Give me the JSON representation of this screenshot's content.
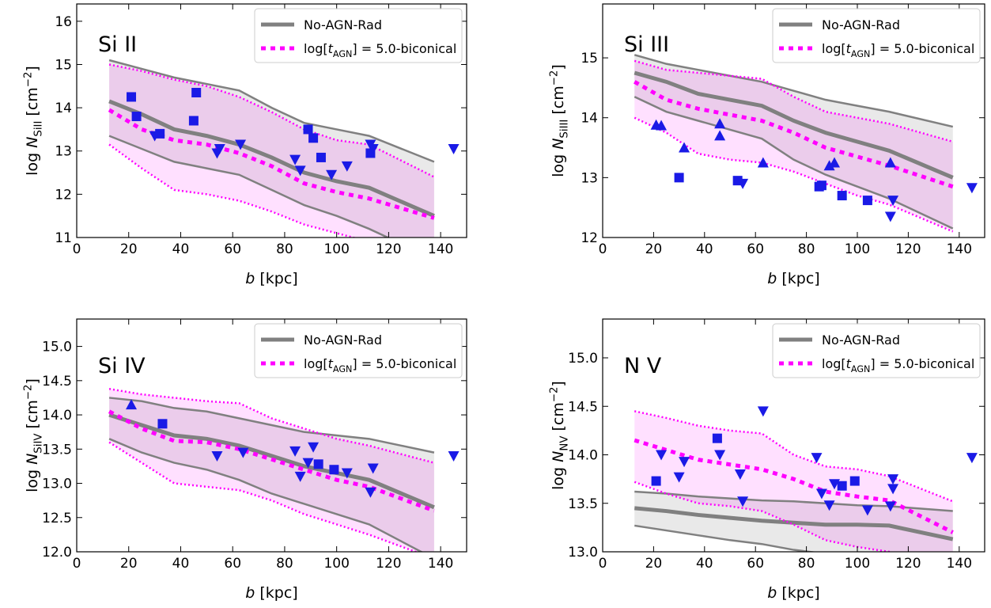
{
  "chart_data": [
    {
      "type": "line",
      "label": "Si II",
      "xlabel": [
        {
          "text": "b",
          "style": "italic"
        },
        {
          "text": " [kpc]"
        }
      ],
      "ylabel": [
        {
          "text": "log "
        },
        {
          "text": "N",
          "style": "italic"
        },
        {
          "text": "SiII",
          "style": "sub"
        },
        {
          "text": " [cm"
        },
        {
          "text": "−2",
          "style": "sup"
        },
        {
          "text": "]"
        }
      ],
      "xlim": [
        0,
        150
      ],
      "xticks": [
        0,
        20,
        40,
        60,
        80,
        100,
        120,
        140
      ],
      "ylim": [
        11,
        16.4
      ],
      "yticks": [
        11,
        12,
        13,
        14,
        15,
        16
      ],
      "legend": "upper right",
      "model_x": [
        12.5,
        25,
        37.5,
        50,
        62.5,
        75,
        87.5,
        100,
        112.5,
        137.5
      ],
      "series": [
        {
          "name": [
            {
              "text": "No-AGN-Rad"
            }
          ],
          "color": "#808080",
          "style": "solid",
          "fill": "#e9e9e9",
          "values": [
            14.15,
            13.85,
            13.5,
            13.35,
            13.15,
            12.85,
            12.5,
            12.3,
            12.15,
            11.5
          ],
          "upper": [
            15.1,
            14.9,
            14.7,
            14.55,
            14.4,
            14.0,
            13.65,
            13.5,
            13.35,
            12.75
          ],
          "lower": [
            13.35,
            13.05,
            12.75,
            12.6,
            12.45,
            12.1,
            11.75,
            11.5,
            11.2,
            10.5
          ]
        },
        {
          "name": [
            {
              "text": "log["
            },
            {
              "text": "t",
              "style": "italic"
            },
            {
              "text": "AGN",
              "style": "sub"
            },
            {
              "text": "] = 5.0-biconical"
            }
          ],
          "color": "#ff00ff",
          "style": "dotted",
          "fill": "rgba(255,0,255,0.12)",
          "values": [
            13.95,
            13.5,
            13.25,
            13.15,
            12.95,
            12.65,
            12.25,
            12.05,
            11.9,
            11.45
          ],
          "upper": [
            15.0,
            14.85,
            14.65,
            14.5,
            14.25,
            13.9,
            13.5,
            13.25,
            13.15,
            12.4
          ],
          "lower": [
            13.15,
            12.6,
            12.1,
            12.0,
            11.85,
            11.6,
            11.3,
            11.1,
            10.9,
            10.3
          ]
        }
      ],
      "observations": [
        {
          "marker": "square",
          "color": "#1a1ae6",
          "x": [
            21,
            23,
            32,
            45,
            46,
            89,
            91,
            94,
            113
          ],
          "y": [
            14.25,
            13.8,
            13.4,
            13.7,
            14.35,
            13.5,
            13.3,
            12.85,
            12.95
          ]
        },
        {
          "marker": "triangle-down",
          "color": "#1a1ae6",
          "x": [
            30,
            54,
            55,
            63,
            84,
            86,
            98,
            104,
            113,
            114,
            145
          ],
          "y": [
            13.35,
            12.95,
            13.05,
            13.15,
            12.8,
            12.55,
            12.45,
            12.65,
            13.15,
            13.05,
            13.05
          ]
        }
      ]
    },
    {
      "type": "line",
      "label": "Si III",
      "xlabel": [
        {
          "text": "b",
          "style": "italic"
        },
        {
          "text": " [kpc]"
        }
      ],
      "ylabel": [
        {
          "text": "log "
        },
        {
          "text": "N",
          "style": "italic"
        },
        {
          "text": "SiIII",
          "style": "sub"
        },
        {
          "text": " [cm"
        },
        {
          "text": "−2",
          "style": "sup"
        },
        {
          "text": "]"
        }
      ],
      "xlim": [
        0,
        150
      ],
      "xticks": [
        0,
        20,
        40,
        60,
        80,
        100,
        120,
        140
      ],
      "ylim": [
        12,
        15.9
      ],
      "yticks": [
        12,
        13,
        14,
        15
      ],
      "legend": "upper right",
      "model_x": [
        12.5,
        25,
        37.5,
        50,
        62.5,
        75,
        87.5,
        100,
        112.5,
        137.5
      ],
      "series": [
        {
          "name": [
            {
              "text": "No-AGN-Rad"
            }
          ],
          "color": "#808080",
          "style": "solid",
          "fill": "#e9e9e9",
          "values": [
            14.75,
            14.6,
            14.4,
            14.3,
            14.2,
            13.95,
            13.75,
            13.6,
            13.45,
            13.0
          ],
          "upper": [
            15.05,
            14.9,
            14.8,
            14.7,
            14.6,
            14.45,
            14.3,
            14.2,
            14.1,
            13.85
          ],
          "lower": [
            14.35,
            14.1,
            13.95,
            13.8,
            13.65,
            13.3,
            13.05,
            12.85,
            12.65,
            12.15
          ]
        },
        {
          "name": [
            {
              "text": "log["
            },
            {
              "text": "t",
              "style": "italic"
            },
            {
              "text": "AGN",
              "style": "sub"
            },
            {
              "text": "] = 5.0-biconical"
            }
          ],
          "color": "#ff00ff",
          "style": "dotted",
          "fill": "rgba(255,0,255,0.12)",
          "values": [
            14.6,
            14.3,
            14.15,
            14.05,
            13.95,
            13.75,
            13.5,
            13.35,
            13.2,
            12.85
          ],
          "upper": [
            14.95,
            14.8,
            14.75,
            14.7,
            14.65,
            14.35,
            14.1,
            14.0,
            13.9,
            13.6
          ],
          "lower": [
            14.0,
            13.75,
            13.4,
            13.3,
            13.25,
            13.1,
            12.9,
            12.7,
            12.55,
            12.1
          ]
        }
      ],
      "observations": [
        {
          "marker": "square",
          "color": "#1a1ae6",
          "x": [
            30,
            53,
            85,
            86,
            94,
            104
          ],
          "y": [
            13.0,
            12.95,
            12.85,
            12.87,
            12.7,
            12.62
          ]
        },
        {
          "marker": "triangle-up",
          "color": "#1a1ae6",
          "x": [
            21,
            23,
            32,
            46,
            46,
            63,
            89,
            91,
            113
          ],
          "y": [
            13.88,
            13.87,
            13.5,
            13.9,
            13.7,
            13.25,
            13.2,
            13.25,
            13.25
          ]
        },
        {
          "marker": "triangle-down",
          "color": "#1a1ae6",
          "x": [
            55,
            113,
            114,
            145
          ],
          "y": [
            12.9,
            12.35,
            12.62,
            12.83
          ]
        }
      ]
    },
    {
      "type": "line",
      "label": "Si IV",
      "xlabel": [
        {
          "text": "b",
          "style": "italic"
        },
        {
          "text": " [kpc]"
        }
      ],
      "ylabel": [
        {
          "text": "log "
        },
        {
          "text": "N",
          "style": "italic"
        },
        {
          "text": "SiIV",
          "style": "sub"
        },
        {
          "text": " [cm"
        },
        {
          "text": "−2",
          "style": "sup"
        },
        {
          "text": "]"
        }
      ],
      "xlim": [
        0,
        150
      ],
      "xticks": [
        0,
        20,
        40,
        60,
        80,
        100,
        120,
        140
      ],
      "ylim": [
        12,
        15.4
      ],
      "yticks": [
        {
          "value": 12,
          "label": "12.0"
        },
        12.5,
        {
          "value": 13,
          "label": "13.0"
        },
        13.5,
        {
          "value": 14,
          "label": "14.0"
        },
        14.5,
        {
          "value": 15,
          "label": "15.0"
        }
      ],
      "legend": "upper right",
      "model_x": [
        12.5,
        25,
        37.5,
        50,
        62.5,
        75,
        87.5,
        100,
        112.5,
        137.5
      ],
      "series": [
        {
          "name": [
            {
              "text": "No-AGN-Rad"
            }
          ],
          "color": "#808080",
          "style": "solid",
          "fill": "#e9e9e9",
          "values": [
            14.0,
            13.85,
            13.7,
            13.65,
            13.55,
            13.4,
            13.25,
            13.15,
            13.05,
            12.65
          ],
          "upper": [
            14.25,
            14.2,
            14.1,
            14.05,
            13.95,
            13.85,
            13.75,
            13.7,
            13.65,
            13.45
          ],
          "lower": [
            13.65,
            13.45,
            13.3,
            13.2,
            13.05,
            12.85,
            12.7,
            12.55,
            12.4,
            11.9
          ]
        },
        {
          "name": [
            {
              "text": "log["
            },
            {
              "text": "t",
              "style": "italic"
            },
            {
              "text": "AGN",
              "style": "sub"
            },
            {
              "text": "] = 5.0-biconical"
            }
          ],
          "color": "#ff00ff",
          "style": "dotted",
          "fill": "rgba(255,0,255,0.12)",
          "values": [
            14.05,
            13.8,
            13.62,
            13.6,
            13.5,
            13.35,
            13.2,
            13.05,
            12.95,
            12.6
          ],
          "upper": [
            14.38,
            14.3,
            14.25,
            14.2,
            14.17,
            13.95,
            13.8,
            13.65,
            13.55,
            13.3
          ],
          "lower": [
            13.6,
            13.3,
            13.0,
            12.95,
            12.9,
            12.75,
            12.55,
            12.4,
            12.25,
            11.9
          ]
        }
      ],
      "observations": [
        {
          "marker": "square",
          "color": "#1a1ae6",
          "x": [
            33,
            93,
            99
          ],
          "y": [
            13.87,
            13.28,
            13.2
          ]
        },
        {
          "marker": "triangle-up",
          "color": "#1a1ae6",
          "x": [
            21
          ],
          "y": [
            14.15
          ]
        },
        {
          "marker": "triangle-down",
          "color": "#1a1ae6",
          "x": [
            54,
            64,
            84,
            86,
            89,
            91,
            104,
            113,
            114,
            145
          ],
          "y": [
            13.4,
            13.45,
            13.47,
            13.1,
            13.3,
            13.53,
            13.15,
            12.87,
            13.22,
            13.4
          ]
        }
      ]
    },
    {
      "type": "line",
      "label": "N V",
      "xlabel": [
        {
          "text": "b",
          "style": "italic"
        },
        {
          "text": " [kpc]"
        }
      ],
      "ylabel": [
        {
          "text": "log "
        },
        {
          "text": "N",
          "style": "italic"
        },
        {
          "text": "NV",
          "style": "sub"
        },
        {
          "text": " [cm"
        },
        {
          "text": "−2",
          "style": "sup"
        },
        {
          "text": "]"
        }
      ],
      "xlim": [
        0,
        150
      ],
      "xticks": [
        0,
        20,
        40,
        60,
        80,
        100,
        120,
        140
      ],
      "ylim": [
        13,
        15.4
      ],
      "yticks": [
        {
          "value": 13,
          "label": "13.0"
        },
        13.5,
        {
          "value": 14,
          "label": "14.0"
        },
        14.5,
        {
          "value": 15,
          "label": "15.0"
        }
      ],
      "legend": "upper right",
      "model_x": [
        12.5,
        25,
        37.5,
        50,
        62.5,
        75,
        87.5,
        100,
        112.5,
        137.5
      ],
      "series": [
        {
          "name": [
            {
              "text": "No-AGN-Rad"
            }
          ],
          "color": "#808080",
          "style": "solid",
          "fill": "#e9e9e9",
          "values": [
            13.45,
            13.42,
            13.38,
            13.35,
            13.32,
            13.3,
            13.28,
            13.28,
            13.27,
            13.13
          ],
          "upper": [
            13.62,
            13.6,
            13.57,
            13.55,
            13.53,
            13.52,
            13.5,
            13.48,
            13.47,
            13.42
          ],
          "lower": [
            13.27,
            13.22,
            13.17,
            13.12,
            13.08,
            13.02,
            12.98,
            12.95,
            12.95,
            12.75
          ]
        },
        {
          "name": [
            {
              "text": "log["
            },
            {
              "text": "t",
              "style": "italic"
            },
            {
              "text": "AGN",
              "style": "sub"
            },
            {
              "text": "] = 5.0-biconical"
            }
          ],
          "color": "#ff00ff",
          "style": "dotted",
          "fill": "rgba(255,0,255,0.12)",
          "values": [
            14.15,
            14.05,
            13.95,
            13.9,
            13.85,
            13.75,
            13.62,
            13.57,
            13.53,
            13.2
          ],
          "upper": [
            14.45,
            14.38,
            14.3,
            14.25,
            14.22,
            14.0,
            13.88,
            13.85,
            13.78,
            13.52
          ],
          "lower": [
            13.72,
            13.6,
            13.5,
            13.47,
            13.42,
            13.28,
            13.12,
            13.05,
            13.0,
            12.8
          ]
        }
      ],
      "observations": [
        {
          "marker": "square",
          "color": "#1a1ae6",
          "x": [
            21,
            45,
            94,
            99
          ],
          "y": [
            13.73,
            14.17,
            13.68,
            13.73
          ]
        },
        {
          "marker": "triangle-down",
          "color": "#1a1ae6",
          "x": [
            23,
            30,
            32,
            46,
            54,
            55,
            63,
            84,
            86,
            89,
            91,
            104,
            113,
            114,
            114,
            145
          ],
          "y": [
            14.0,
            13.77,
            13.93,
            14.0,
            13.8,
            13.52,
            14.45,
            13.97,
            13.6,
            13.48,
            13.7,
            13.43,
            13.47,
            13.65,
            13.75,
            13.97
          ]
        }
      ]
    }
  ]
}
